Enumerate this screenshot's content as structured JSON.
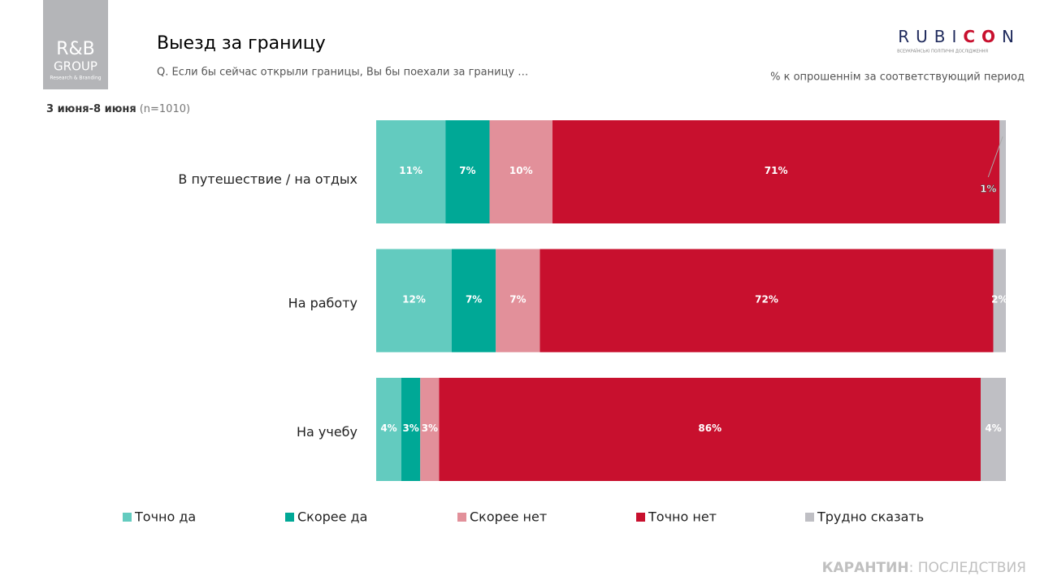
{
  "logo": {
    "line1": "R&B",
    "line2": "GROUP",
    "line3": "Research & Branding"
  },
  "header": {
    "title": "Выезд за границу",
    "subtitle": "Q. Если бы сейчас открыли границы, Вы бы поехали за границу …",
    "period": "3 июня-8 июня",
    "sample": "(n=1010)",
    "unit_note": "% к опрошеннім за соответствующий период"
  },
  "brand": {
    "name_start": "RUBI",
    "name_accent": "CO",
    "name_end": "N",
    "tagline": "ВСЕУКРАЇНСЬКІ ПОЛІТИЧНІ ДОСЛІДЖЕННЯ"
  },
  "footer": {
    "bold": "КАРАНТИН",
    "rest": ": ПОСЛЕДСТВИЯ"
  },
  "chart_data": {
    "type": "stacked_bar_horizontal",
    "categories": [
      "В путешествие  / на отдых",
      "На работу",
      "На учебу"
    ],
    "series": [
      {
        "name": "Точно да",
        "color": "#63cbbf",
        "values": [
          11,
          12,
          4
        ],
        "value_labels": [
          "11%",
          "12%",
          "4%"
        ]
      },
      {
        "name": "Скорее да",
        "color": "#00a896",
        "values": [
          7,
          7,
          3
        ],
        "value_labels": [
          "7%",
          "7%",
          "3%"
        ]
      },
      {
        "name": "Скорее нет",
        "color": "#e2909a",
        "values": [
          10,
          7,
          3
        ],
        "value_labels": [
          "10%",
          "7%",
          "3%"
        ]
      },
      {
        "name": "Точно нет",
        "color": "#c8102e",
        "values": [
          71,
          72,
          86
        ],
        "value_labels": [
          "71%",
          "72%",
          "86%"
        ]
      },
      {
        "name": "Трудно сказать",
        "color": "#bfbfc4",
        "values": [
          1,
          2,
          4
        ],
        "value_labels": [
          "1%",
          "2%",
          "4%"
        ]
      }
    ],
    "legend": "bottom"
  }
}
